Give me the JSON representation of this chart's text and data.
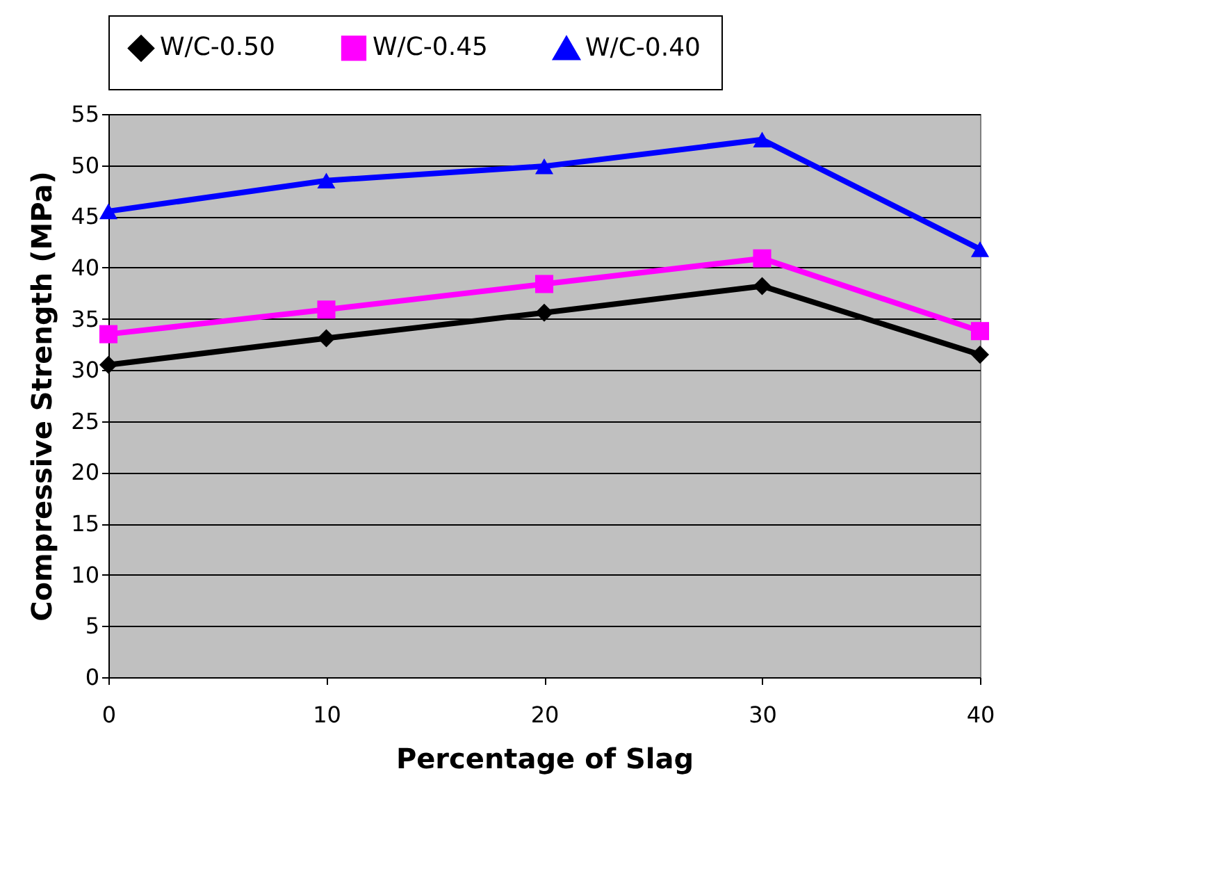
{
  "chart_data": {
    "type": "line",
    "xlabel": "Percentage of Slag",
    "ylabel": "Compressive Strength (MPa)",
    "x": [
      0,
      10,
      20,
      30,
      40
    ],
    "series": [
      {
        "name": "W/C-0.50",
        "color": "#000000",
        "marker": "diamond",
        "values": [
          30.5,
          33.1,
          35.6,
          38.2,
          31.5
        ]
      },
      {
        "name": "W/C-0.45",
        "color": "#ff00ff",
        "marker": "square",
        "values": [
          33.5,
          35.9,
          38.4,
          40.9,
          33.8
        ]
      },
      {
        "name": "W/C-0.40",
        "color": "#0000ff",
        "marker": "triangle",
        "values": [
          45.5,
          48.5,
          49.9,
          52.5,
          41.8
        ]
      }
    ],
    "xlim": [
      0,
      40
    ],
    "xticks": [
      0,
      10,
      20,
      30,
      40
    ],
    "ylim": [
      0,
      55
    ],
    "yticks": [
      0,
      5,
      10,
      15,
      20,
      25,
      30,
      35,
      40,
      45,
      50,
      55
    ],
    "grid": "y",
    "legend": "top"
  }
}
